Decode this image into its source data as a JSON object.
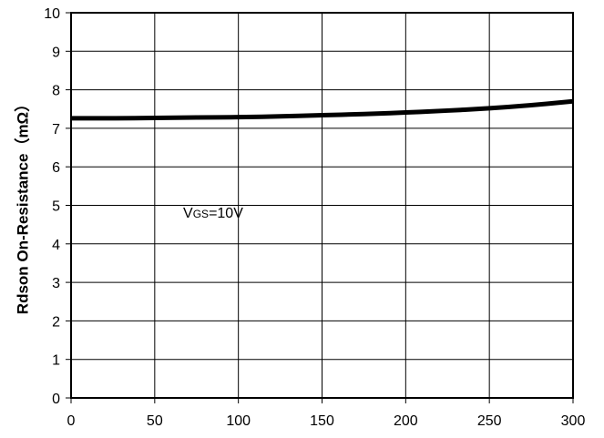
{
  "chart_data": {
    "type": "line",
    "title": "",
    "xlabel": "",
    "ylabel": "Rdson On-Resistance（mΩ）",
    "xlim": [
      0,
      300
    ],
    "ylim": [
      0,
      10
    ],
    "x_ticks": [
      "0",
      "50",
      "100",
      "150",
      "200",
      "250",
      "300"
    ],
    "y_ticks": [
      "0",
      "1",
      "2",
      "3",
      "4",
      "5",
      "6",
      "7",
      "8",
      "9",
      "10"
    ],
    "grid": true,
    "legend": "none",
    "series": [
      {
        "color": "#000000",
        "x": [
          0,
          25,
          50,
          75,
          100,
          125,
          150,
          175,
          200,
          225,
          250,
          275,
          300
        ],
        "y": [
          7.26,
          7.26,
          7.27,
          7.28,
          7.29,
          7.31,
          7.34,
          7.37,
          7.41,
          7.46,
          7.52,
          7.6,
          7.7
        ]
      }
    ],
    "annotations": [
      {
        "main": "V",
        "sub": "GS",
        "rest": "=10V",
        "x": 67,
        "y": 4.68
      }
    ]
  }
}
